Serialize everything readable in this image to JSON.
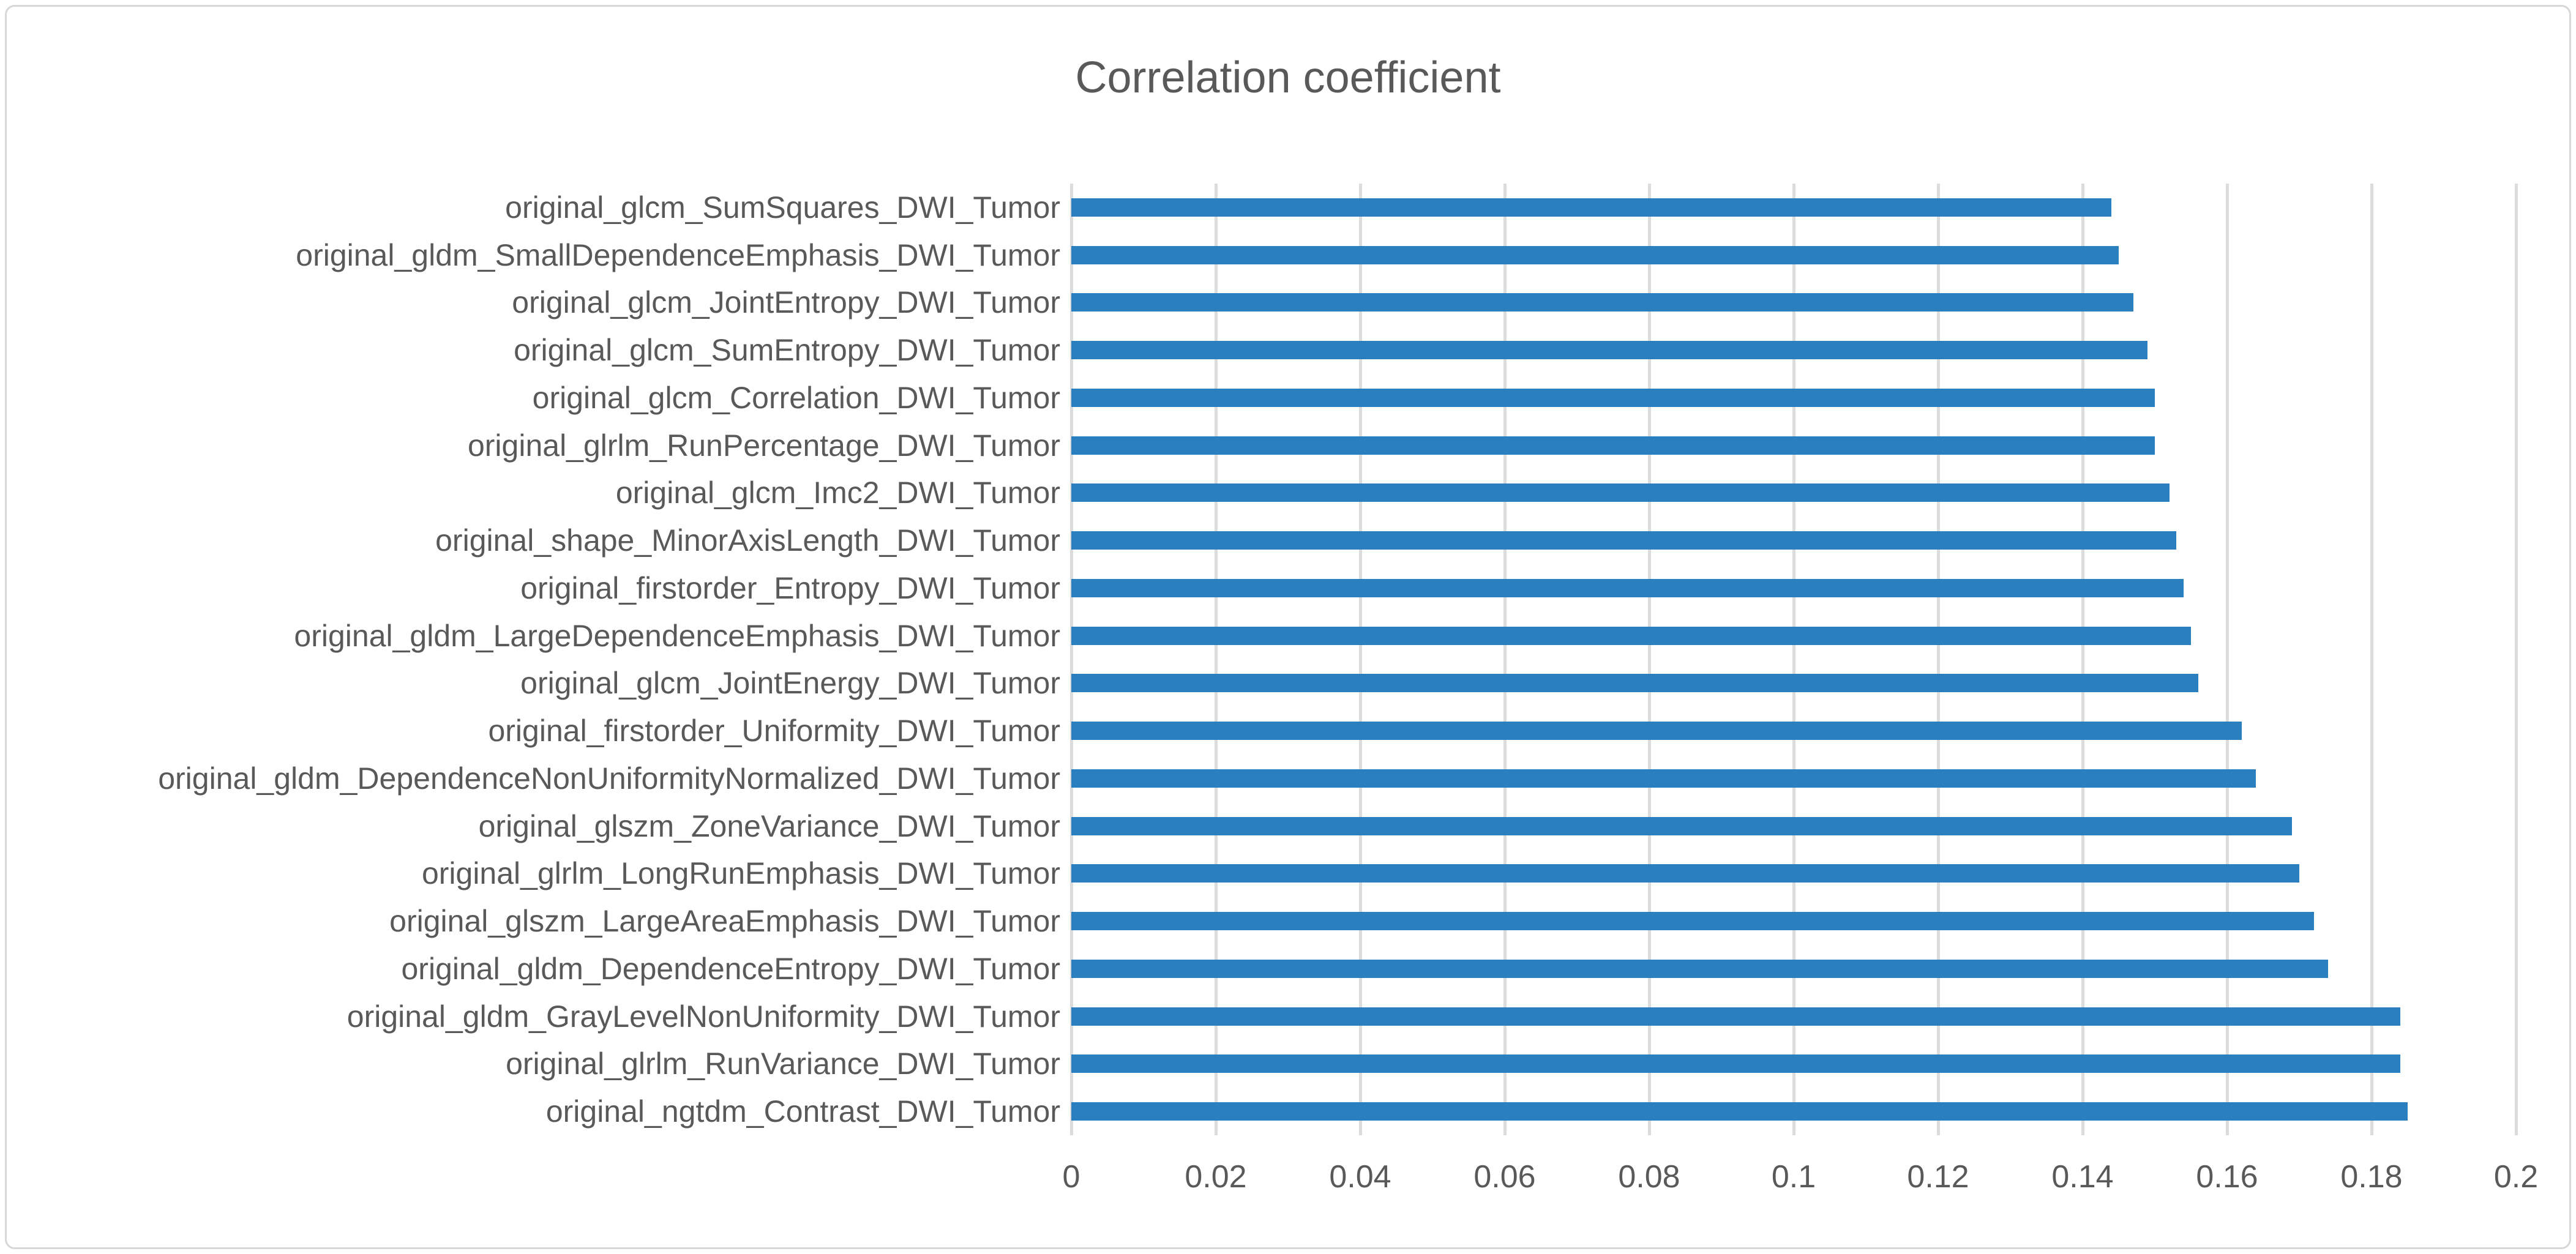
{
  "chart_data": {
    "type": "bar",
    "orientation": "horizontal",
    "title": "Correlation coefficient",
    "categories": [
      "original_glcm_SumSquares_DWI_Tumor",
      "original_gldm_SmallDependenceEmphasis_DWI_Tumor",
      "original_glcm_JointEntropy_DWI_Tumor",
      "original_glcm_SumEntropy_DWI_Tumor",
      "original_glcm_Correlation_DWI_Tumor",
      "original_glrlm_RunPercentage_DWI_Tumor",
      "original_glcm_Imc2_DWI_Tumor",
      "original_shape_MinorAxisLength_DWI_Tumor",
      "original_firstorder_Entropy_DWI_Tumor",
      "original_gldm_LargeDependenceEmphasis_DWI_Tumor",
      "original_glcm_JointEnergy_DWI_Tumor",
      "original_firstorder_Uniformity_DWI_Tumor",
      "original_gldm_DependenceNonUniformityNormalized_DWI_Tumor",
      "original_glszm_ZoneVariance_DWI_Tumor",
      "original_glrlm_LongRunEmphasis_DWI_Tumor",
      "original_glszm_LargeAreaEmphasis_DWI_Tumor",
      "original_gldm_DependenceEntropy_DWI_Tumor",
      "original_gldm_GrayLevelNonUniformity_DWI_Tumor",
      "original_glrlm_RunVariance_DWI_Tumor",
      "original_ngtdm_Contrast_DWI_Tumor"
    ],
    "values": [
      0.144,
      0.145,
      0.147,
      0.149,
      0.15,
      0.15,
      0.152,
      0.153,
      0.154,
      0.155,
      0.156,
      0.162,
      0.164,
      0.169,
      0.17,
      0.172,
      0.174,
      0.184,
      0.184,
      0.185
    ],
    "xlabel": "",
    "ylabel": "",
    "xlim": [
      0,
      0.2
    ],
    "x_ticks": [
      0,
      0.02,
      0.04,
      0.06,
      0.08,
      0.1,
      0.12,
      0.14,
      0.16,
      0.18,
      0.2
    ],
    "x_tick_labels": [
      "0",
      "0.02",
      "0.04",
      "0.06",
      "0.08",
      "0.1",
      "0.12",
      "0.14",
      "0.16",
      "0.18",
      "0.2"
    ],
    "grid": true,
    "legend": false,
    "bar_color": "#2a7fbe",
    "grid_color": "#dcdcdc",
    "text_color": "#595959",
    "title_color": "#595959"
  }
}
